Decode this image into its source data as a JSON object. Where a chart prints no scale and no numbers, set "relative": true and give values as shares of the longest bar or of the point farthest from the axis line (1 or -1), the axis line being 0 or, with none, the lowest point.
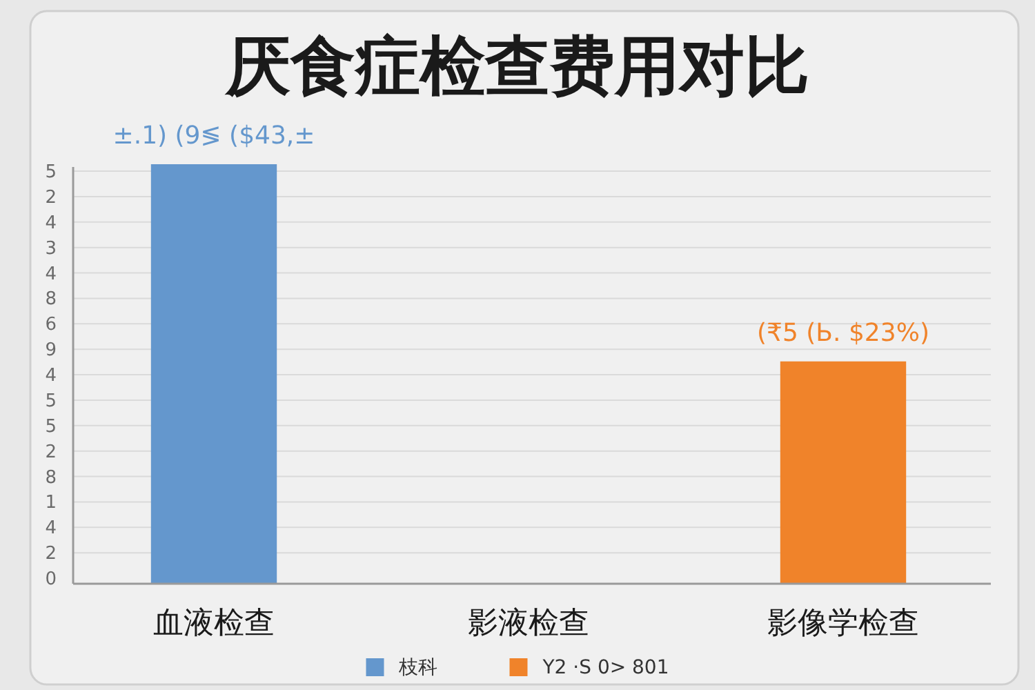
{
  "chart_data": {
    "type": "bar",
    "title": "厌食症检查费用对比",
    "relative": true,
    "categories": [
      "血液检查",
      "影液检查",
      "影像学检查"
    ],
    "series": [
      {
        "name": "枝科",
        "color": "#6497cd",
        "values": [
          1,
          null,
          null
        ]
      },
      {
        "name": "Y2 ·S 0> 801",
        "color": "#f0832a",
        "values": [
          null,
          null,
          0.53
        ]
      }
    ],
    "annotations": [
      {
        "text": "±.1) (9≶ ($43,±",
        "x": "血液检查",
        "y": 1
      },
      {
        "text": "(₹5 (Ь. $23%)",
        "x": "影像学检查",
        "y": 0.53
      },
      "5",
      "2",
      "4",
      "3",
      "4",
      "8",
      "6",
      "9",
      "4",
      "5",
      "5",
      "2",
      "8",
      "1",
      "4",
      "2",
      "0"
    ],
    "grid": "y",
    "legend": "bottom"
  }
}
